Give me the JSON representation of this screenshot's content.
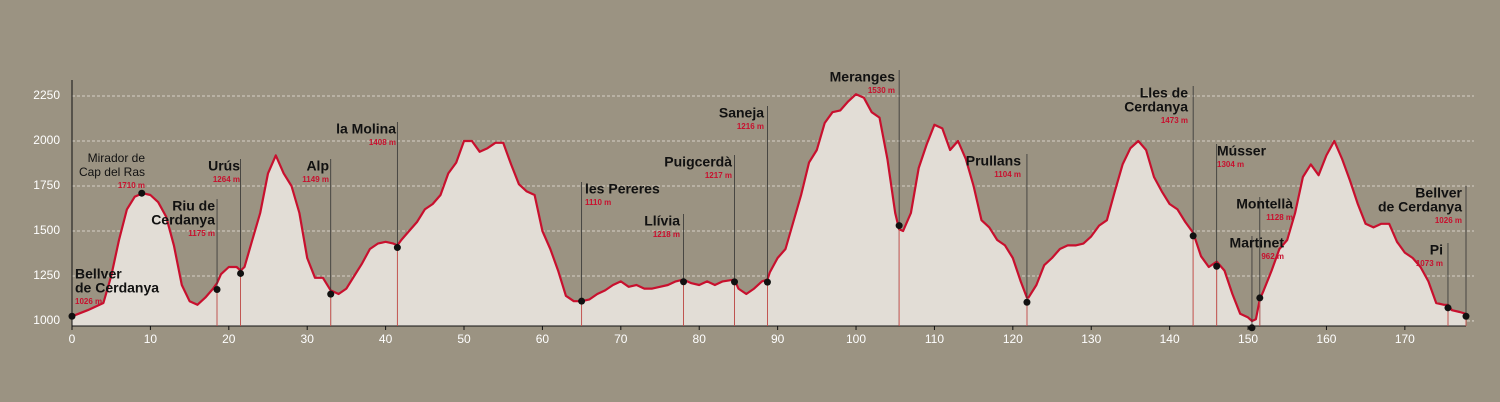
{
  "chart_data": {
    "type": "area",
    "color": "#c8102e",
    "fill_color": "#e2ddd6",
    "grid": true,
    "xlim": [
      0,
      177.8
    ],
    "ylim": [
      972,
      2339
    ],
    "xticks": [
      0,
      10,
      20,
      30,
      40,
      50,
      60,
      70,
      80,
      90,
      100,
      110,
      120,
      130,
      140,
      150,
      160,
      170
    ],
    "yticks": [
      1000,
      1250,
      1500,
      1750,
      2000,
      2250
    ],
    "x": [
      0,
      2,
      4,
      5,
      6,
      7,
      8,
      9,
      10,
      11,
      12,
      13,
      14,
      15,
      16,
      17,
      18,
      18.5,
      19,
      20,
      21,
      21.5,
      22,
      23,
      24,
      25,
      26,
      27,
      28,
      29,
      30,
      31,
      32,
      33,
      34,
      35,
      36,
      37,
      38,
      39,
      40,
      41,
      41.5,
      42,
      43,
      44,
      45,
      46,
      47,
      48,
      49,
      50,
      51,
      52,
      53,
      54,
      55,
      56,
      57,
      58,
      59,
      60,
      61,
      62,
      63,
      64,
      65,
      66,
      67,
      68,
      69,
      70,
      71,
      72,
      73,
      74,
      75,
      76,
      77,
      78,
      79,
      80,
      81,
      82,
      83,
      84.5,
      85,
      86,
      87,
      88,
      88.7,
      89,
      90,
      91,
      92,
      93,
      94,
      95,
      96,
      97,
      98,
      99,
      100,
      101,
      102,
      103,
      104,
      105,
      105.5,
      106,
      107,
      108,
      109,
      110,
      111,
      112,
      113,
      114,
      115,
      116,
      117,
      118,
      119,
      120,
      121,
      121.8,
      122,
      123,
      124,
      125,
      126,
      127,
      128,
      129,
      130,
      131,
      132,
      133,
      134,
      135,
      136,
      137,
      138,
      139,
      140,
      141,
      142,
      143,
      144,
      145,
      146,
      147,
      148,
      149,
      150,
      150.5,
      151,
      151.5,
      152,
      153,
      154,
      155,
      156,
      157,
      158,
      159,
      160,
      161,
      162,
      163,
      164,
      165,
      166,
      167,
      168,
      169,
      170,
      171,
      172,
      173,
      174,
      175,
      175.5,
      176,
      177,
      177.8
    ],
    "values": [
      1026,
      1060,
      1100,
      1250,
      1450,
      1620,
      1690,
      1710,
      1700,
      1660,
      1580,
      1420,
      1200,
      1110,
      1090,
      1130,
      1180,
      1210,
      1260,
      1300,
      1300,
      1280,
      1300,
      1450,
      1600,
      1820,
      1920,
      1820,
      1750,
      1600,
      1350,
      1240,
      1240,
      1170,
      1150,
      1180,
      1250,
      1320,
      1400,
      1430,
      1440,
      1430,
      1420,
      1450,
      1500,
      1550,
      1620,
      1650,
      1700,
      1820,
      1880,
      2000,
      2000,
      1940,
      1960,
      1990,
      1990,
      1870,
      1760,
      1720,
      1700,
      1500,
      1400,
      1280,
      1140,
      1110,
      1110,
      1120,
      1150,
      1170,
      1200,
      1220,
      1190,
      1200,
      1180,
      1180,
      1190,
      1200,
      1220,
      1230,
      1210,
      1200,
      1220,
      1200,
      1220,
      1230,
      1180,
      1150,
      1180,
      1220,
      1230,
      1270,
      1350,
      1400,
      1550,
      1700,
      1880,
      1950,
      2100,
      2160,
      2170,
      2220,
      2260,
      2240,
      2160,
      2130,
      1900,
      1600,
      1510,
      1500,
      1600,
      1850,
      1980,
      2090,
      2070,
      1950,
      2000,
      1900,
      1750,
      1560,
      1520,
      1450,
      1420,
      1350,
      1220,
      1130,
      1130,
      1200,
      1310,
      1350,
      1400,
      1420,
      1420,
      1430,
      1470,
      1530,
      1560,
      1720,
      1870,
      1960,
      2000,
      1950,
      1800,
      1720,
      1650,
      1620,
      1550,
      1490,
      1360,
      1300,
      1330,
      1280,
      1150,
      1040,
      1020,
      1000,
      1010,
      1120,
      1170,
      1280,
      1400,
      1450,
      1600,
      1800,
      1870,
      1810,
      1920,
      2000,
      1900,
      1780,
      1650,
      1540,
      1520,
      1540,
      1540,
      1440,
      1380,
      1350,
      1300,
      1220,
      1100,
      1090,
      1090,
      1060,
      1050,
      1040
    ],
    "waypoints": [
      {
        "name": [
          "Bellver",
          "de Cerdanya"
        ],
        "x": 0,
        "elevation": 1026,
        "elevation_label": "1026 m"
      },
      {
        "name": [
          "Mirador de",
          "Cap del Ras"
        ],
        "x": 8.9,
        "elevation": 1710,
        "elevation_label": "1710 m"
      },
      {
        "name": [
          "Riu de",
          "Cerdanya"
        ],
        "x": 18.5,
        "elevation": 1175,
        "elevation_label": "1175 m"
      },
      {
        "name": [
          "Urús"
        ],
        "x": 21.5,
        "elevation": 1264,
        "elevation_label": "1264 m"
      },
      {
        "name": [
          "Alp"
        ],
        "x": 33,
        "elevation": 1149,
        "elevation_label": "1149 m"
      },
      {
        "name": [
          "la Molina"
        ],
        "x": 41.5,
        "elevation": 1408,
        "elevation_label": "1408 m"
      },
      {
        "name": [
          "les Pereres"
        ],
        "x": 65,
        "elevation": 1110,
        "elevation_label": "1110 m"
      },
      {
        "name": [
          "Llívia"
        ],
        "x": 78,
        "elevation": 1218,
        "elevation_label": "1218 m"
      },
      {
        "name": [
          "Puigcerdà"
        ],
        "x": 84.5,
        "elevation": 1217,
        "elevation_label": "1217 m"
      },
      {
        "name": [
          "Saneja"
        ],
        "x": 88.7,
        "elevation": 1216,
        "elevation_label": "1216 m"
      },
      {
        "name": [
          "Meranges"
        ],
        "x": 105.5,
        "elevation": 1530,
        "elevation_label": "1530 m"
      },
      {
        "name": [
          "Prullans"
        ],
        "x": 121.8,
        "elevation": 1104,
        "elevation_label": "1104 m"
      },
      {
        "name": [
          "Lles de",
          "Cerdanya"
        ],
        "x": 143,
        "elevation": 1473,
        "elevation_label": "1473 m"
      },
      {
        "name": [
          "Músser"
        ],
        "x": 146,
        "elevation": 1304,
        "elevation_label": "1304 m"
      },
      {
        "name": [
          "Montellà"
        ],
        "x": 151.5,
        "elevation": 1128,
        "elevation_label": "1128 m"
      },
      {
        "name": [
          "Martinet"
        ],
        "x": 150.5,
        "elevation": 962,
        "elevation_label": "962 m"
      },
      {
        "name": [
          "Pi"
        ],
        "x": 175.5,
        "elevation": 1073,
        "elevation_label": "1073 m"
      },
      {
        "name": [
          "Bellver",
          "de Cerdanya"
        ],
        "x": 177.8,
        "elevation": 1026,
        "elevation_label": "1026 m"
      }
    ]
  }
}
